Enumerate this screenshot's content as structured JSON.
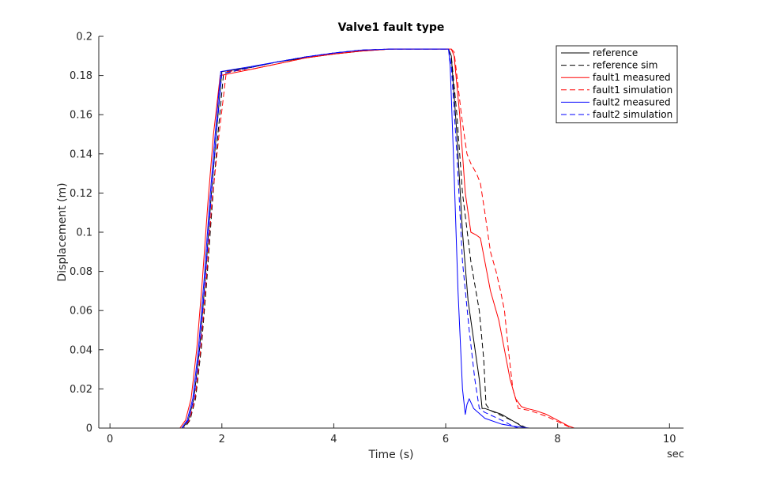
{
  "chart_data": {
    "type": "line",
    "title": "Valve1 fault type",
    "xlabel": "Time (s)",
    "ylabel": "Displacement (m)",
    "x_unit_label": "sec",
    "xlim": [
      -0.2,
      10.25
    ],
    "ylim": [
      0,
      0.2
    ],
    "xticks": [
      0,
      2,
      4,
      6,
      8,
      10
    ],
    "yticks": [
      0,
      0.02,
      0.04,
      0.06,
      0.08,
      0.1,
      0.12,
      0.14,
      0.16,
      0.18,
      0.2
    ],
    "ytick_labels": [
      "0",
      "0.02",
      "0.04",
      "0.06",
      "0.08",
      "0.1",
      "0.12",
      "0.14",
      "0.16",
      "0.18",
      "0.2"
    ],
    "grid": false,
    "legend_position": "top-right",
    "series": [
      {
        "name": "reference",
        "color": "#000000",
        "dash": "solid",
        "points": [
          [
            0,
            0
          ],
          [
            1.3,
            0
          ],
          [
            1.4,
            0.004
          ],
          [
            1.5,
            0.015
          ],
          [
            1.6,
            0.04
          ],
          [
            1.7,
            0.075
          ],
          [
            1.8,
            0.115
          ],
          [
            1.9,
            0.15
          ],
          [
            2.0,
            0.182
          ],
          [
            2.5,
            0.184
          ],
          [
            3,
            0.187
          ],
          [
            3.5,
            0.189
          ],
          [
            4,
            0.191
          ],
          [
            4.5,
            0.1925
          ],
          [
            5,
            0.1935
          ],
          [
            5.5,
            0.1935
          ],
          [
            6.05,
            0.1935
          ],
          [
            6.1,
            0.19
          ],
          [
            6.2,
            0.15
          ],
          [
            6.3,
            0.1
          ],
          [
            6.4,
            0.065
          ],
          [
            6.5,
            0.045
          ],
          [
            6.6,
            0.025
          ],
          [
            6.65,
            0.01
          ],
          [
            6.7,
            0.01
          ],
          [
            7.0,
            0.007
          ],
          [
            7.3,
            0.002
          ],
          [
            7.4,
            0
          ],
          [
            10,
            0
          ]
        ]
      },
      {
        "name": "reference sim",
        "color": "#000000",
        "dash": "dashed",
        "points": [
          [
            0,
            0
          ],
          [
            1.33,
            0
          ],
          [
            1.43,
            0.004
          ],
          [
            1.53,
            0.015
          ],
          [
            1.63,
            0.04
          ],
          [
            1.73,
            0.075
          ],
          [
            1.83,
            0.115
          ],
          [
            1.93,
            0.15
          ],
          [
            2.03,
            0.181
          ],
          [
            2.5,
            0.184
          ],
          [
            3,
            0.187
          ],
          [
            3.5,
            0.1895
          ],
          [
            4,
            0.1915
          ],
          [
            4.5,
            0.193
          ],
          [
            5,
            0.1935
          ],
          [
            5.5,
            0.1935
          ],
          [
            6.05,
            0.1935
          ],
          [
            6.1,
            0.19
          ],
          [
            6.2,
            0.16
          ],
          [
            6.3,
            0.12
          ],
          [
            6.45,
            0.085
          ],
          [
            6.6,
            0.06
          ],
          [
            6.68,
            0.035
          ],
          [
            6.72,
            0.012
          ],
          [
            6.8,
            0.009
          ],
          [
            7.1,
            0.005
          ],
          [
            7.45,
            0
          ],
          [
            10,
            0
          ]
        ]
      },
      {
        "name": "fault1 measured",
        "color": "#ff0000",
        "dash": "solid",
        "points": [
          [
            0,
            0
          ],
          [
            1.25,
            0
          ],
          [
            1.35,
            0.004
          ],
          [
            1.45,
            0.015
          ],
          [
            1.55,
            0.04
          ],
          [
            1.65,
            0.075
          ],
          [
            1.75,
            0.115
          ],
          [
            1.85,
            0.15
          ],
          [
            1.97,
            0.18
          ],
          [
            2.5,
            0.183
          ],
          [
            3,
            0.186
          ],
          [
            3.5,
            0.189
          ],
          [
            4,
            0.191
          ],
          [
            4.5,
            0.1925
          ],
          [
            5,
            0.1935
          ],
          [
            5.5,
            0.1935
          ],
          [
            6.1,
            0.1935
          ],
          [
            6.15,
            0.19
          ],
          [
            6.25,
            0.16
          ],
          [
            6.35,
            0.12
          ],
          [
            6.45,
            0.1
          ],
          [
            6.55,
            0.0985
          ],
          [
            6.62,
            0.097
          ],
          [
            6.7,
            0.085
          ],
          [
            6.8,
            0.07
          ],
          [
            6.95,
            0.055
          ],
          [
            7.05,
            0.04
          ],
          [
            7.15,
            0.025
          ],
          [
            7.25,
            0.015
          ],
          [
            7.35,
            0.011
          ],
          [
            7.45,
            0.01
          ],
          [
            7.6,
            0.009
          ],
          [
            7.8,
            0.007
          ],
          [
            8.0,
            0.004
          ],
          [
            8.2,
            0.001
          ],
          [
            8.3,
            0
          ],
          [
            10,
            0
          ]
        ]
      },
      {
        "name": "fault1 simulation",
        "color": "#ff0000",
        "dash": "dashed",
        "points": [
          [
            0,
            0
          ],
          [
            1.3,
            0
          ],
          [
            1.42,
            0.004
          ],
          [
            1.52,
            0.015
          ],
          [
            1.62,
            0.04
          ],
          [
            1.72,
            0.075
          ],
          [
            1.82,
            0.115
          ],
          [
            1.95,
            0.15
          ],
          [
            2.08,
            0.182
          ],
          [
            2.5,
            0.183
          ],
          [
            3,
            0.186
          ],
          [
            3.5,
            0.189
          ],
          [
            4,
            0.191
          ],
          [
            4.5,
            0.1925
          ],
          [
            5,
            0.1935
          ],
          [
            5.5,
            0.1935
          ],
          [
            6.1,
            0.1935
          ],
          [
            6.15,
            0.192
          ],
          [
            6.2,
            0.18
          ],
          [
            6.28,
            0.16
          ],
          [
            6.38,
            0.14
          ],
          [
            6.45,
            0.135
          ],
          [
            6.55,
            0.13
          ],
          [
            6.62,
            0.125
          ],
          [
            6.7,
            0.11
          ],
          [
            6.8,
            0.09
          ],
          [
            6.9,
            0.08
          ],
          [
            6.98,
            0.07
          ],
          [
            7.05,
            0.06
          ],
          [
            7.12,
            0.04
          ],
          [
            7.2,
            0.02
          ],
          [
            7.3,
            0.01
          ],
          [
            7.5,
            0.009
          ],
          [
            7.8,
            0.006
          ],
          [
            8.1,
            0.002
          ],
          [
            8.25,
            0
          ],
          [
            10,
            0
          ]
        ]
      },
      {
        "name": "fault2 measured",
        "color": "#0000ff",
        "dash": "solid",
        "points": [
          [
            0,
            0
          ],
          [
            1.28,
            0
          ],
          [
            1.38,
            0.004
          ],
          [
            1.48,
            0.015
          ],
          [
            1.58,
            0.04
          ],
          [
            1.68,
            0.075
          ],
          [
            1.78,
            0.115
          ],
          [
            1.88,
            0.15
          ],
          [
            1.98,
            0.182
          ],
          [
            2.5,
            0.1845
          ],
          [
            3,
            0.187
          ],
          [
            3.5,
            0.1895
          ],
          [
            4,
            0.1915
          ],
          [
            4.5,
            0.193
          ],
          [
            5,
            0.1935
          ],
          [
            5.5,
            0.1935
          ],
          [
            6.05,
            0.1935
          ],
          [
            6.08,
            0.185
          ],
          [
            6.15,
            0.13
          ],
          [
            6.22,
            0.07
          ],
          [
            6.3,
            0.02
          ],
          [
            6.35,
            0.007
          ],
          [
            6.38,
            0.012
          ],
          [
            6.42,
            0.015
          ],
          [
            6.5,
            0.01
          ],
          [
            6.7,
            0.005
          ],
          [
            7.0,
            0.002
          ],
          [
            7.2,
            0.001
          ],
          [
            7.5,
            0
          ],
          [
            10,
            0
          ]
        ]
      },
      {
        "name": "fault2 simulation",
        "color": "#0000ff",
        "dash": "dashed",
        "points": [
          [
            0,
            0
          ],
          [
            1.3,
            0
          ],
          [
            1.4,
            0.004
          ],
          [
            1.5,
            0.015
          ],
          [
            1.6,
            0.04
          ],
          [
            1.7,
            0.075
          ],
          [
            1.8,
            0.115
          ],
          [
            1.9,
            0.15
          ],
          [
            2.0,
            0.181
          ],
          [
            2.5,
            0.184
          ],
          [
            3,
            0.187
          ],
          [
            3.5,
            0.1895
          ],
          [
            4,
            0.1915
          ],
          [
            4.5,
            0.193
          ],
          [
            5,
            0.1935
          ],
          [
            5.5,
            0.1935
          ],
          [
            6.05,
            0.1935
          ],
          [
            6.1,
            0.185
          ],
          [
            6.2,
            0.14
          ],
          [
            6.3,
            0.085
          ],
          [
            6.42,
            0.05
          ],
          [
            6.52,
            0.025
          ],
          [
            6.6,
            0.01
          ],
          [
            6.7,
            0.008
          ],
          [
            7.0,
            0.004
          ],
          [
            7.2,
            0.001
          ],
          [
            7.3,
            0
          ],
          [
            10,
            0
          ]
        ]
      }
    ]
  }
}
